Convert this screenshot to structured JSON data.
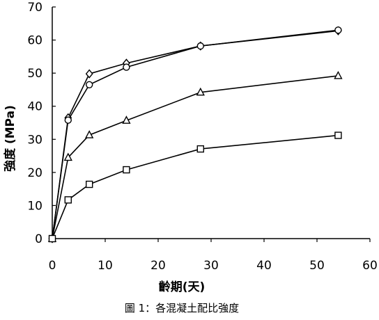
{
  "chart_data": {
    "type": "line",
    "title": "",
    "xlabel": "齡期(天)",
    "ylabel": "強度 (MPa)",
    "xlim": [
      0,
      60
    ],
    "ylim": [
      0,
      70
    ],
    "xticks": [
      0,
      10,
      20,
      30,
      40,
      50,
      60
    ],
    "yticks": [
      0,
      10,
      20,
      30,
      40,
      50,
      60,
      70
    ],
    "grid": false,
    "legend": "none",
    "x": [
      0,
      3,
      7,
      14,
      28,
      54
    ],
    "series": [
      {
        "marker": "diamond",
        "values": [
          0,
          36.5,
          49.8,
          53,
          58.2,
          62.8
        ]
      },
      {
        "marker": "circle",
        "values": [
          0,
          35.8,
          46.5,
          51.8,
          58.2,
          63.0
        ]
      },
      {
        "marker": "triangle",
        "values": [
          0,
          24.5,
          31.3,
          35.7,
          44.2,
          49.2
        ]
      },
      {
        "marker": "square",
        "values": [
          0,
          11.7,
          16.4,
          20.8,
          27.1,
          31.2
        ]
      }
    ]
  },
  "caption": "圖 1：各混凝土配比強度",
  "colors": {
    "line": "#000000",
    "background": "#ffffff"
  }
}
